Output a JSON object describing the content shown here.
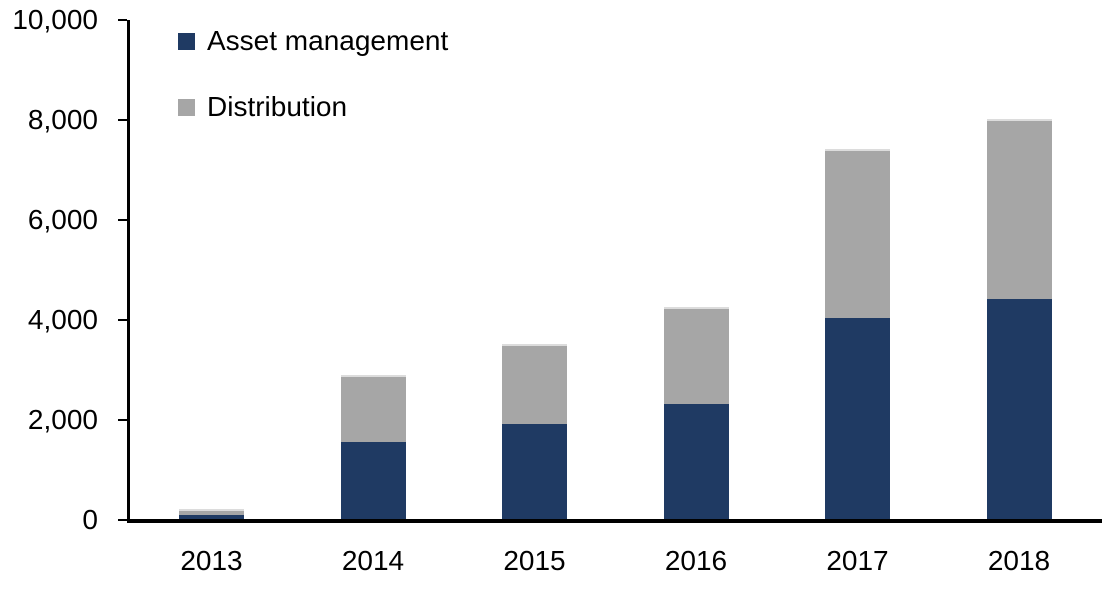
{
  "chart_data": {
    "type": "bar",
    "stacked": true,
    "title": "",
    "xlabel": "",
    "ylabel": "",
    "categories": [
      "2013",
      "2014",
      "2015",
      "2016",
      "2017",
      "2018"
    ],
    "series": [
      {
        "name": "Asset management",
        "color": "#1f3a63",
        "values": [
          90,
          1550,
          1900,
          2300,
          4030,
          4400
        ]
      },
      {
        "name": "Distribution",
        "color": "#a6a6a6",
        "values": [
          110,
          1330,
          1600,
          1940,
          3370,
          3600
        ]
      }
    ],
    "stack_totals": [
      200,
      2880,
      3500,
      4240,
      7400,
      8000
    ],
    "ylim": [
      0,
      10000
    ],
    "ytick_interval": 2000,
    "ytick_labels": [
      "0",
      "2,000",
      "4,000",
      "6,000",
      "8,000",
      "10,000"
    ],
    "grid": false,
    "legend_position": "top-left",
    "axis_color": "#000000",
    "background_color": "#ffffff"
  },
  "legend": {
    "items": [
      {
        "label": "Asset management",
        "color": "#1f3a63"
      },
      {
        "label": "Distribution",
        "color": "#a6a6a6"
      }
    ]
  }
}
